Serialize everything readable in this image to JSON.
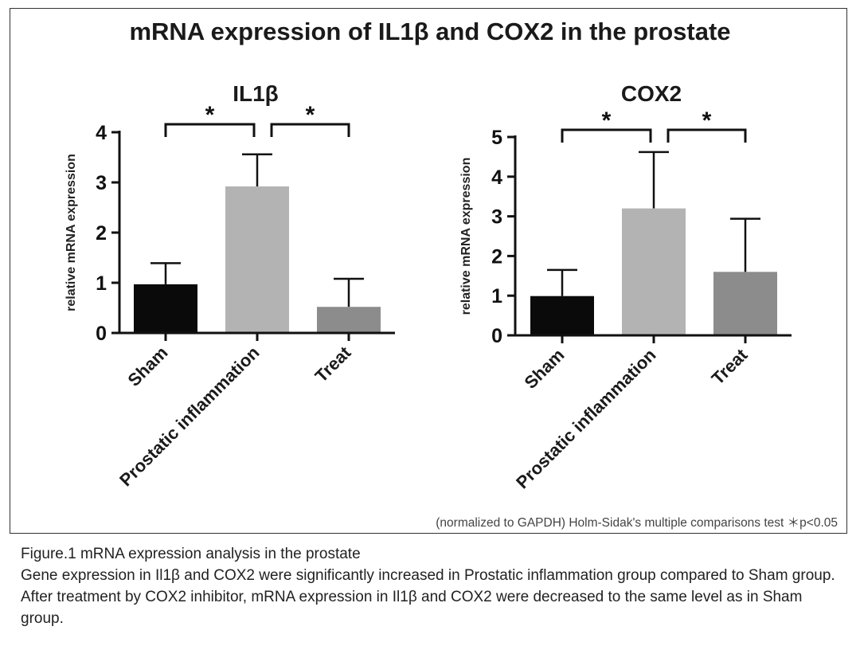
{
  "figure": {
    "title": "mRNA expression of IL1β and COX2 in the prostate",
    "footnote": "(normalized to GAPDH) Holm-Sidak's multiple comparisons test  ＊p<0.05"
  },
  "caption": {
    "heading": "Figure.1  mRNA expression analysis in the prostate",
    "body": "Gene expression in Il1β and COX2 were significantly increased in Prostatic inflammation group compared to Sham group. After treatment by COX2 inhibitor, mRNA expression in Il1β and COX2 were decreased to the same level as in Sham group."
  },
  "chart_data": [
    {
      "type": "bar",
      "title": "IL1β",
      "ylabel": "relative mRNA expression",
      "xlabel": "",
      "categories": [
        "Sham",
        "Prostatic inflammation",
        "Treat"
      ],
      "values": [
        0.97,
        2.92,
        0.52
      ],
      "errors": [
        0.42,
        0.64,
        0.56
      ],
      "colors": [
        "#0a0a0a",
        "#b3b3b3",
        "#8c8c8c"
      ],
      "ylim": [
        0,
        4
      ],
      "yticks": [
        0,
        1,
        2,
        3,
        4
      ],
      "significance": [
        {
          "from": 0,
          "to": 1,
          "label": "*"
        },
        {
          "from": 1,
          "to": 2,
          "label": "*"
        }
      ]
    },
    {
      "type": "bar",
      "title": "COX2",
      "ylabel": "relative mRNA expression",
      "xlabel": "",
      "categories": [
        "Sham",
        "Prostatic inflammation",
        "Treat"
      ],
      "values": [
        0.99,
        3.2,
        1.6
      ],
      "errors": [
        0.66,
        1.42,
        1.34
      ],
      "colors": [
        "#0a0a0a",
        "#b3b3b3",
        "#8c8c8c"
      ],
      "ylim": [
        0,
        5
      ],
      "yticks": [
        0,
        1,
        2,
        3,
        4,
        5
      ],
      "significance": [
        {
          "from": 0,
          "to": 1,
          "label": "*"
        },
        {
          "from": 1,
          "to": 2,
          "label": "*"
        }
      ]
    }
  ]
}
